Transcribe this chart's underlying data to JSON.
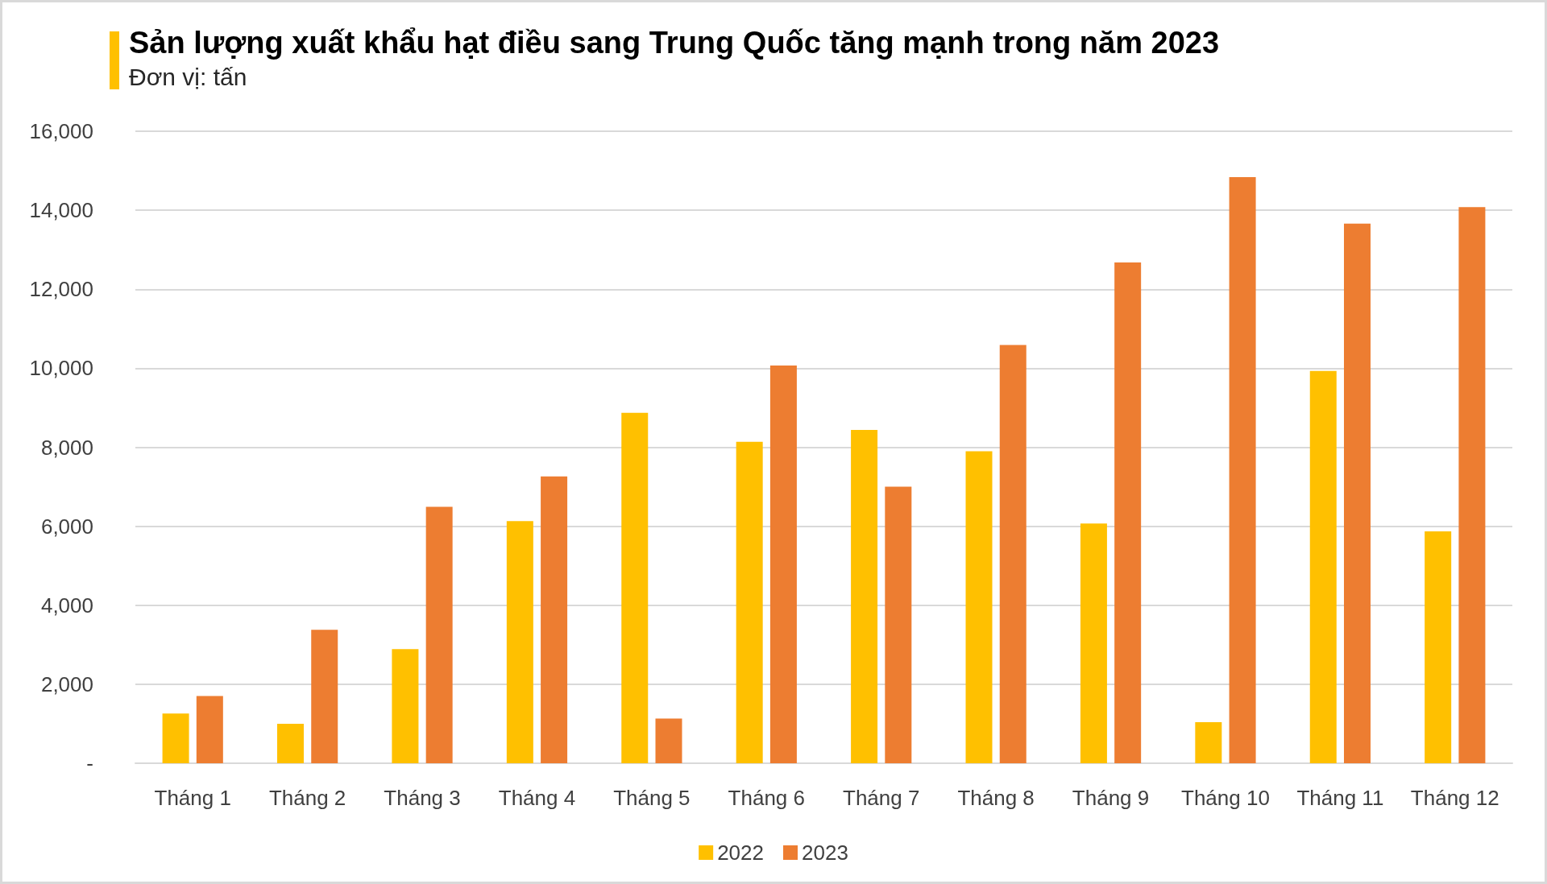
{
  "chart_data": {
    "type": "bar",
    "title": "Sản lượng xuất khẩu hạt điều sang Trung Quốc tăng mạnh trong năm 2023",
    "subtitle": "Đơn vị: tấn",
    "categories": [
      "Tháng 1",
      "Tháng 2",
      "Tháng 3",
      "Tháng 4",
      "Tháng 5",
      "Tháng 6",
      "Tháng 7",
      "Tháng 8",
      "Tháng 9",
      "Tháng 10",
      "Tháng 11",
      "Tháng 12"
    ],
    "series": [
      {
        "name": "2022",
        "color": "#ffc000",
        "values": [
          1260,
          1000,
          2890,
          6130,
          8870,
          8140,
          8440,
          7900,
          6070,
          1040,
          9930,
          5870
        ]
      },
      {
        "name": "2023",
        "color": "#ed7d31",
        "values": [
          1700,
          3380,
          6490,
          7260,
          1130,
          10070,
          7000,
          10590,
          12680,
          14840,
          13660,
          14080
        ]
      }
    ],
    "ylim": [
      0,
      16000
    ],
    "yticks": [
      {
        "value": 0,
        "label": "-"
      },
      {
        "value": 2000,
        "label": "2,000"
      },
      {
        "value": 4000,
        "label": "4,000"
      },
      {
        "value": 6000,
        "label": "6,000"
      },
      {
        "value": 8000,
        "label": "8,000"
      },
      {
        "value": 10000,
        "label": "10,000"
      },
      {
        "value": 12000,
        "label": "12,000"
      },
      {
        "value": 14000,
        "label": "14,000"
      },
      {
        "value": 16000,
        "label": "16,000"
      }
    ],
    "grid": "y",
    "legend": "bottom"
  }
}
